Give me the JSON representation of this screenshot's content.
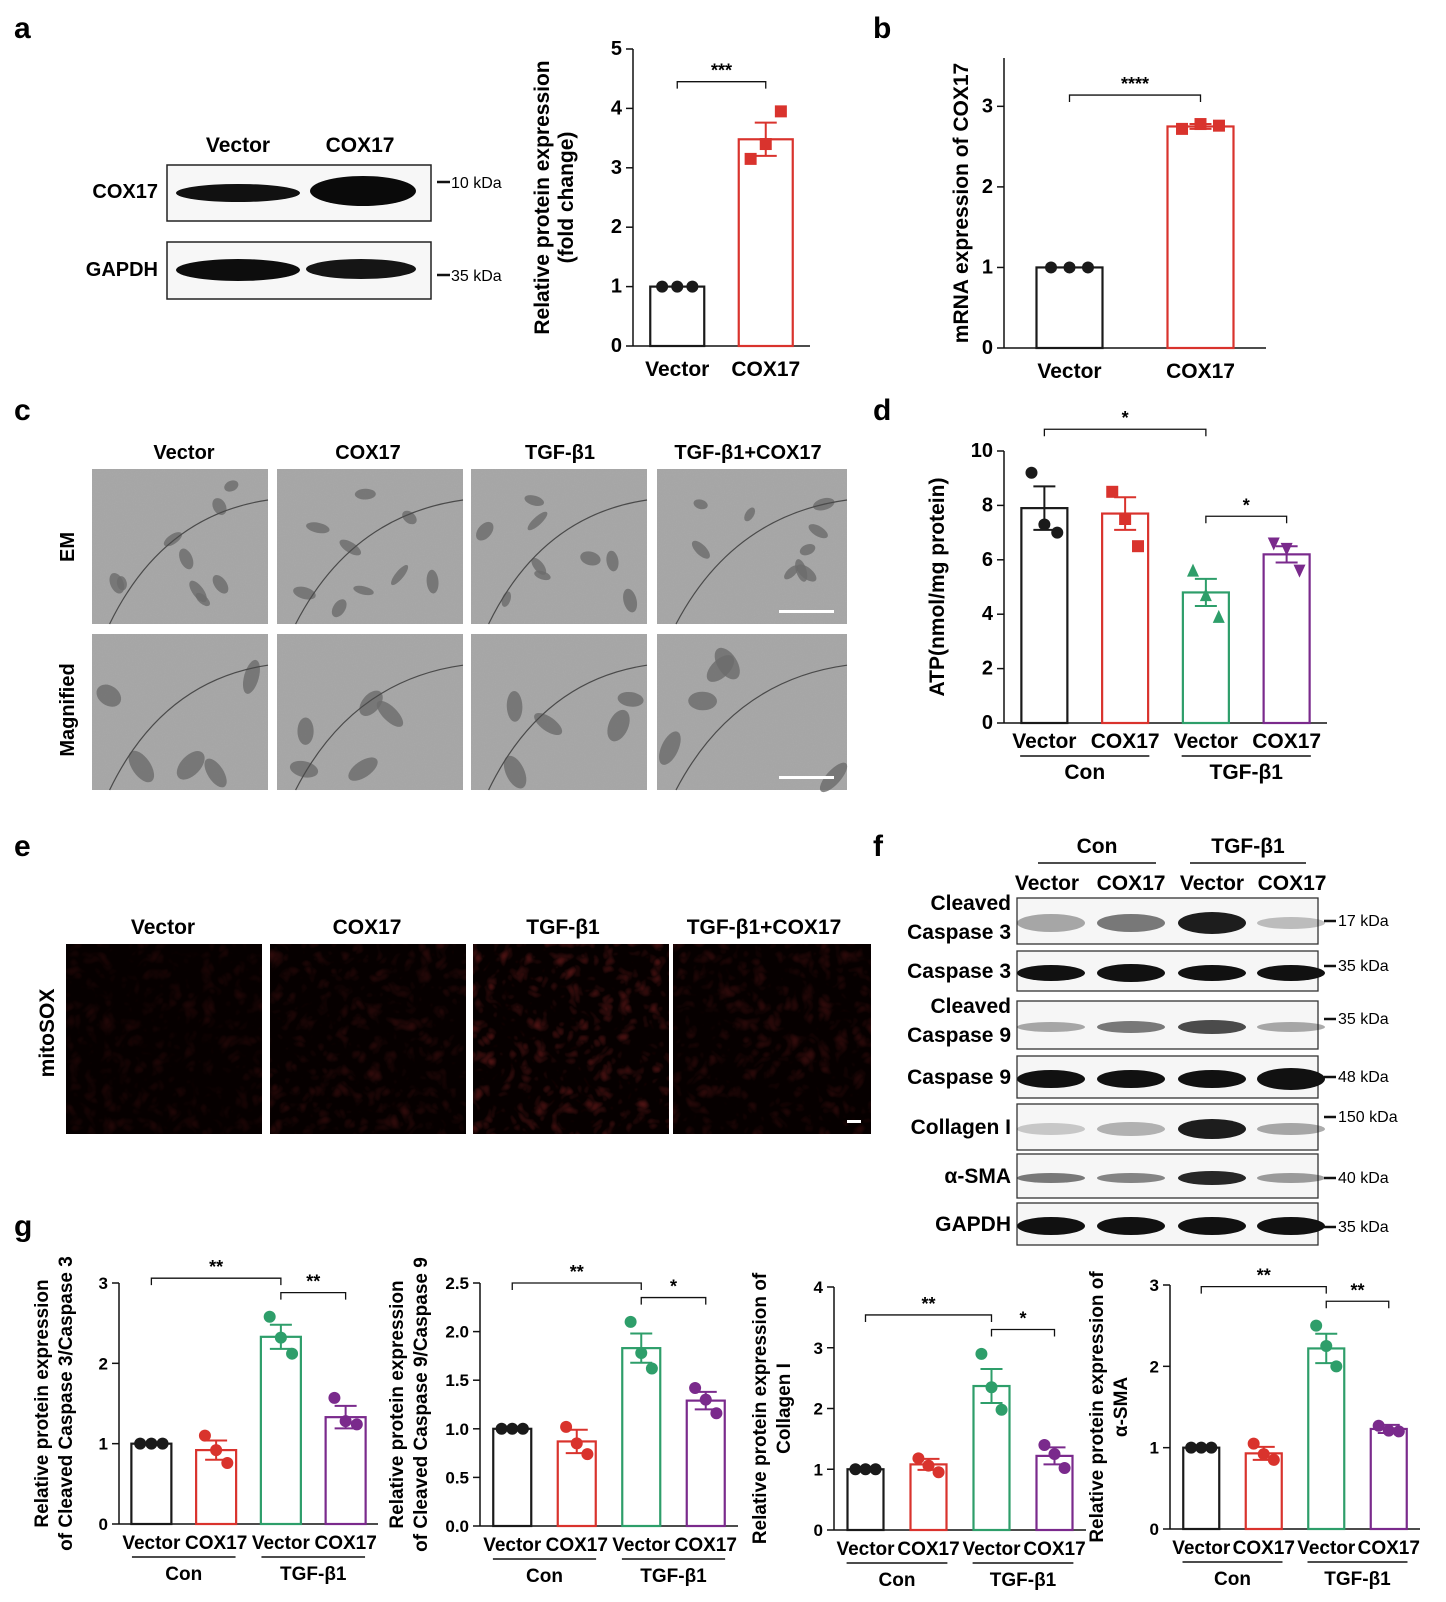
{
  "panels": {
    "a": {
      "letter": "a",
      "blot": {
        "lanes": [
          "Vector",
          "COX17"
        ],
        "rows": [
          {
            "name": "COX17",
            "marker": "10 kDa"
          },
          {
            "name": "GAPDH",
            "marker": "35 kDa"
          }
        ]
      }
    },
    "b": {
      "letter": "b"
    },
    "c": {
      "letter": "c",
      "columns": [
        "Vector",
        "COX17",
        "TGF-β1",
        "TGF-β1+COX17"
      ],
      "rows": [
        "EM",
        "Magnified"
      ]
    },
    "d": {
      "letter": "d"
    },
    "e": {
      "letter": "e",
      "columns": [
        "Vector",
        "COX17",
        "TGF-β1",
        "TGF-β1+COX17"
      ],
      "row": "mitoSOX"
    },
    "f": {
      "letter": "f",
      "groups": [
        "Con",
        "TGF-β1"
      ],
      "lanes": [
        "Vector",
        "COX17",
        "Vector",
        "COX17"
      ],
      "rows": [
        {
          "name": "Cleaved\nCaspase 3",
          "marker": "17 kDa"
        },
        {
          "name": "Caspase 3",
          "marker": "35 kDa"
        },
        {
          "name": "Cleaved\nCaspase 9",
          "marker": "35 kDa"
        },
        {
          "name": "Caspase 9",
          "marker": "48 kDa"
        },
        {
          "name": "Collagen I",
          "marker": "150 kDa"
        },
        {
          "name": "α-SMA",
          "marker": "40 kDa"
        },
        {
          "name": "GAPDH",
          "marker": "35 kDa"
        }
      ]
    },
    "g": {
      "letter": "g"
    }
  },
  "colors": {
    "vector": "#1a1a1a",
    "cox17": "#d9332d",
    "tgf_vector": "#2e9e6a",
    "tgf_cox17": "#7a2a8c"
  },
  "chart_data": [
    {
      "id": "a",
      "type": "bar",
      "categories": [
        "Vector",
        "COX17"
      ],
      "values": [
        1.0,
        3.48
      ],
      "sem": [
        0.0,
        0.28
      ],
      "points": [
        [
          1.0,
          1.0,
          1.0
        ],
        [
          3.15,
          3.4,
          3.95
        ]
      ],
      "ylabel": [
        "Relative protein expression",
        "(fold change)"
      ],
      "ylim": [
        0,
        5
      ],
      "yticks": [
        "0",
        "1",
        "2",
        "3",
        "4",
        "5"
      ],
      "significance": [
        {
          "from": 0,
          "to": 1,
          "text": "***"
        }
      ]
    },
    {
      "id": "b",
      "type": "bar",
      "categories": [
        "Vector",
        "COX17"
      ],
      "values": [
        1.0,
        2.75
      ],
      "sem": [
        0.0,
        0.03
      ],
      "points": [
        [
          1.0,
          1.0,
          1.0
        ],
        [
          2.72,
          2.78,
          2.76
        ]
      ],
      "ylabel": [
        "mRNA expression of COX17"
      ],
      "ylim": [
        0,
        3.6
      ],
      "yticks": [
        "0",
        "1",
        "2",
        "3"
      ],
      "significance": [
        {
          "from": 0,
          "to": 1,
          "text": "****"
        }
      ]
    },
    {
      "id": "d",
      "type": "bar",
      "categories": [
        "Vector",
        "COX17",
        "Vector",
        "COX17"
      ],
      "groups": [
        "Con",
        "TGF-β1"
      ],
      "values": [
        7.9,
        7.7,
        4.8,
        6.2
      ],
      "sem": [
        0.8,
        0.6,
        0.5,
        0.3
      ],
      "points": [
        [
          9.2,
          7.3,
          7.0
        ],
        [
          8.5,
          7.5,
          6.5
        ],
        [
          5.6,
          4.7,
          3.9
        ],
        [
          6.6,
          6.4,
          5.6
        ]
      ],
      "ylabel": [
        "ATP(nmol/mg protein)"
      ],
      "ylim": [
        0,
        10
      ],
      "yticks": [
        "0",
        "2",
        "4",
        "6",
        "8",
        "10"
      ],
      "significance": [
        {
          "from": 0,
          "to": 2,
          "text": "*"
        },
        {
          "from": 2,
          "to": 3,
          "text": "*"
        }
      ]
    },
    {
      "id": "g1",
      "type": "bar",
      "categories": [
        "Vector",
        "COX17",
        "Vector",
        "COX17"
      ],
      "groups": [
        "Con",
        "TGF-β1"
      ],
      "values": [
        1.0,
        0.92,
        2.33,
        1.33
      ],
      "sem": [
        0.0,
        0.12,
        0.15,
        0.14
      ],
      "points": [
        [
          1.0,
          1.0,
          1.0
        ],
        [
          1.1,
          0.92,
          0.76
        ],
        [
          2.58,
          2.32,
          2.12
        ],
        [
          1.57,
          1.28,
          1.24
        ]
      ],
      "ylabel": [
        "Relative protein expression",
        "of Cleaved Caspase 3/Caspase 3"
      ],
      "ylim": [
        0,
        3
      ],
      "yticks": [
        "0",
        "1",
        "2",
        "3"
      ],
      "significance": [
        {
          "from": 0,
          "to": 2,
          "text": "**"
        },
        {
          "from": 2,
          "to": 3,
          "text": "**"
        }
      ]
    },
    {
      "id": "g2",
      "type": "bar",
      "categories": [
        "Vector",
        "COX17",
        "Vector",
        "COX17"
      ],
      "groups": [
        "Con",
        "TGF-β1"
      ],
      "values": [
        1.0,
        0.87,
        1.83,
        1.29
      ],
      "sem": [
        0.0,
        0.12,
        0.15,
        0.09
      ],
      "points": [
        [
          1.0,
          1.0,
          1.0
        ],
        [
          1.02,
          0.85,
          0.74
        ],
        [
          2.1,
          1.78,
          1.62
        ],
        [
          1.42,
          1.3,
          1.16
        ]
      ],
      "ylabel": [
        "Relative protein expression",
        "of Cleaved Caspase 9/Caspase 9"
      ],
      "ylim": [
        0,
        2.5
      ],
      "yticks": [
        "0.0",
        "0.5",
        "1.0",
        "1.5",
        "2.0",
        "2.5"
      ],
      "significance": [
        {
          "from": 0,
          "to": 2,
          "text": "**"
        },
        {
          "from": 2,
          "to": 3,
          "text": "*"
        }
      ]
    },
    {
      "id": "g3",
      "type": "bar",
      "categories": [
        "Vector",
        "COX17",
        "Vector",
        "COX17"
      ],
      "groups": [
        "Con",
        "TGF-β1"
      ],
      "values": [
        1.0,
        1.08,
        2.37,
        1.22
      ],
      "sem": [
        0.0,
        0.09,
        0.28,
        0.14
      ],
      "points": [
        [
          1.0,
          1.0,
          1.0
        ],
        [
          1.18,
          1.06,
          0.95
        ],
        [
          2.9,
          2.35,
          1.98
        ],
        [
          1.4,
          1.25,
          1.02
        ]
      ],
      "ylabel": [
        "Relative protein expression of",
        "Collagen I"
      ],
      "ylim": [
        0,
        4
      ],
      "yticks": [
        "0",
        "1",
        "2",
        "3",
        "4"
      ],
      "significance": [
        {
          "from": 0,
          "to": 2,
          "text": "**"
        },
        {
          "from": 2,
          "to": 3,
          "text": "*"
        }
      ]
    },
    {
      "id": "g4",
      "type": "bar",
      "categories": [
        "Vector",
        "COX17",
        "Vector",
        "COX17"
      ],
      "groups": [
        "Con",
        "TGF-β1"
      ],
      "values": [
        1.0,
        0.93,
        2.22,
        1.23
      ],
      "sem": [
        0.0,
        0.08,
        0.18,
        0.05
      ],
      "points": [
        [
          1.0,
          1.0,
          1.0
        ],
        [
          1.05,
          0.92,
          0.85
        ],
        [
          2.5,
          2.25,
          2.0
        ],
        [
          1.27,
          1.21,
          1.2
        ]
      ],
      "ylabel": [
        "Relative protein expression of",
        "α-SMA"
      ],
      "ylim": [
        0,
        3
      ],
      "yticks": [
        "0",
        "1",
        "2",
        "3"
      ],
      "significance": [
        {
          "from": 0,
          "to": 2,
          "text": "**"
        },
        {
          "from": 2,
          "to": 3,
          "text": "**"
        }
      ]
    }
  ]
}
